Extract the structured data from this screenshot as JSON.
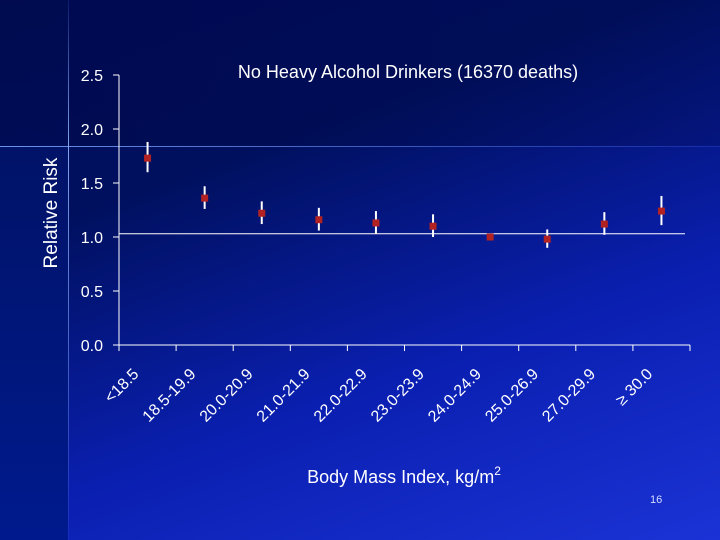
{
  "slide_number": "16",
  "chart_data": {
    "type": "scatter",
    "title": "No Heavy Alcohol Drinkers (16370 deaths)",
    "xlabel": "Body Mass Index, kg/m",
    "xlabel_superscript": "2",
    "ylabel": "Relative Risk",
    "ylim": [
      0,
      2.5
    ],
    "yticks": [
      "0.0",
      "0.5",
      "1.0",
      "1.5",
      "2.0",
      "2.5"
    ],
    "ytick_values": [
      0,
      0.5,
      1.0,
      1.5,
      2.0,
      2.5
    ],
    "reference_line": 1.03,
    "categories": [
      "<18.5",
      "18.5-19.9",
      "20.0-20.9",
      "21.0-21.9",
      "22.0-22.9",
      "23.0-23.9",
      "24.0-24.9",
      "25.0-26.9",
      "27.0-29.9",
      "≥ 30.0"
    ],
    "values": [
      1.73,
      1.36,
      1.22,
      1.16,
      1.13,
      1.1,
      1.0,
      0.98,
      1.12,
      1.24
    ],
    "ci_lower": [
      1.6,
      1.26,
      1.12,
      1.06,
      1.03,
      1.0,
      1.0,
      0.9,
      1.02,
      1.11
    ],
    "ci_upper": [
      1.88,
      1.47,
      1.33,
      1.27,
      1.24,
      1.21,
      1.0,
      1.07,
      1.23,
      1.38
    ],
    "marker_color": "#b22222",
    "errorbar_color": "#ffffff"
  }
}
